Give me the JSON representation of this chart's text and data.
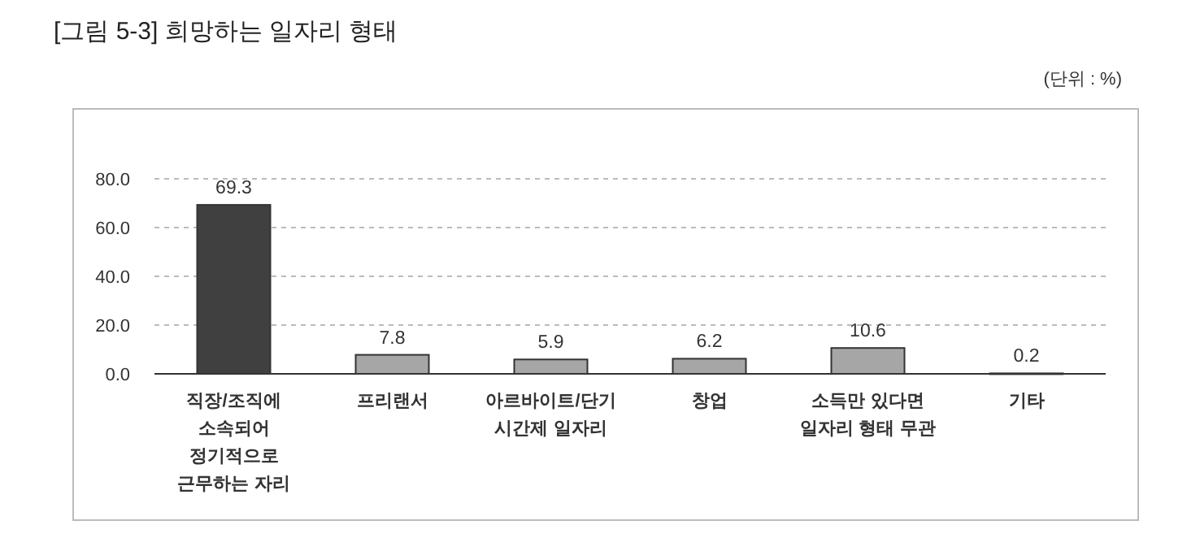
{
  "chart_data": {
    "type": "bar",
    "title": "[그림 5-3] 희망하는 일자리 형태",
    "annotations": [
      "(단위 : %)"
    ],
    "categories": [
      "직장/조직에\n소속되어\n정기적으로\n근무하는 자리",
      "프리랜서",
      "아르바이트/단기\n시간제 일자리",
      "창업",
      "소득만 있다면\n일자리 형태 무관",
      "기타"
    ],
    "values": [
      69.3,
      7.8,
      5.9,
      6.2,
      10.6,
      0.2
    ],
    "colors": [
      "#404040",
      "#a6a6a6",
      "#a6a6a6",
      "#a6a6a6",
      "#a6a6a6",
      "#a6a6a6"
    ],
    "ylim": [
      0,
      80
    ],
    "yticks": [
      {
        "value": 0,
        "label": "0.0"
      },
      {
        "value": 20,
        "label": "20.0"
      },
      {
        "value": 40,
        "label": "40.0"
      },
      {
        "value": 60,
        "label": "60.0"
      },
      {
        "value": 80,
        "label": "80.0"
      }
    ],
    "grid": "y",
    "data_labels": true
  }
}
